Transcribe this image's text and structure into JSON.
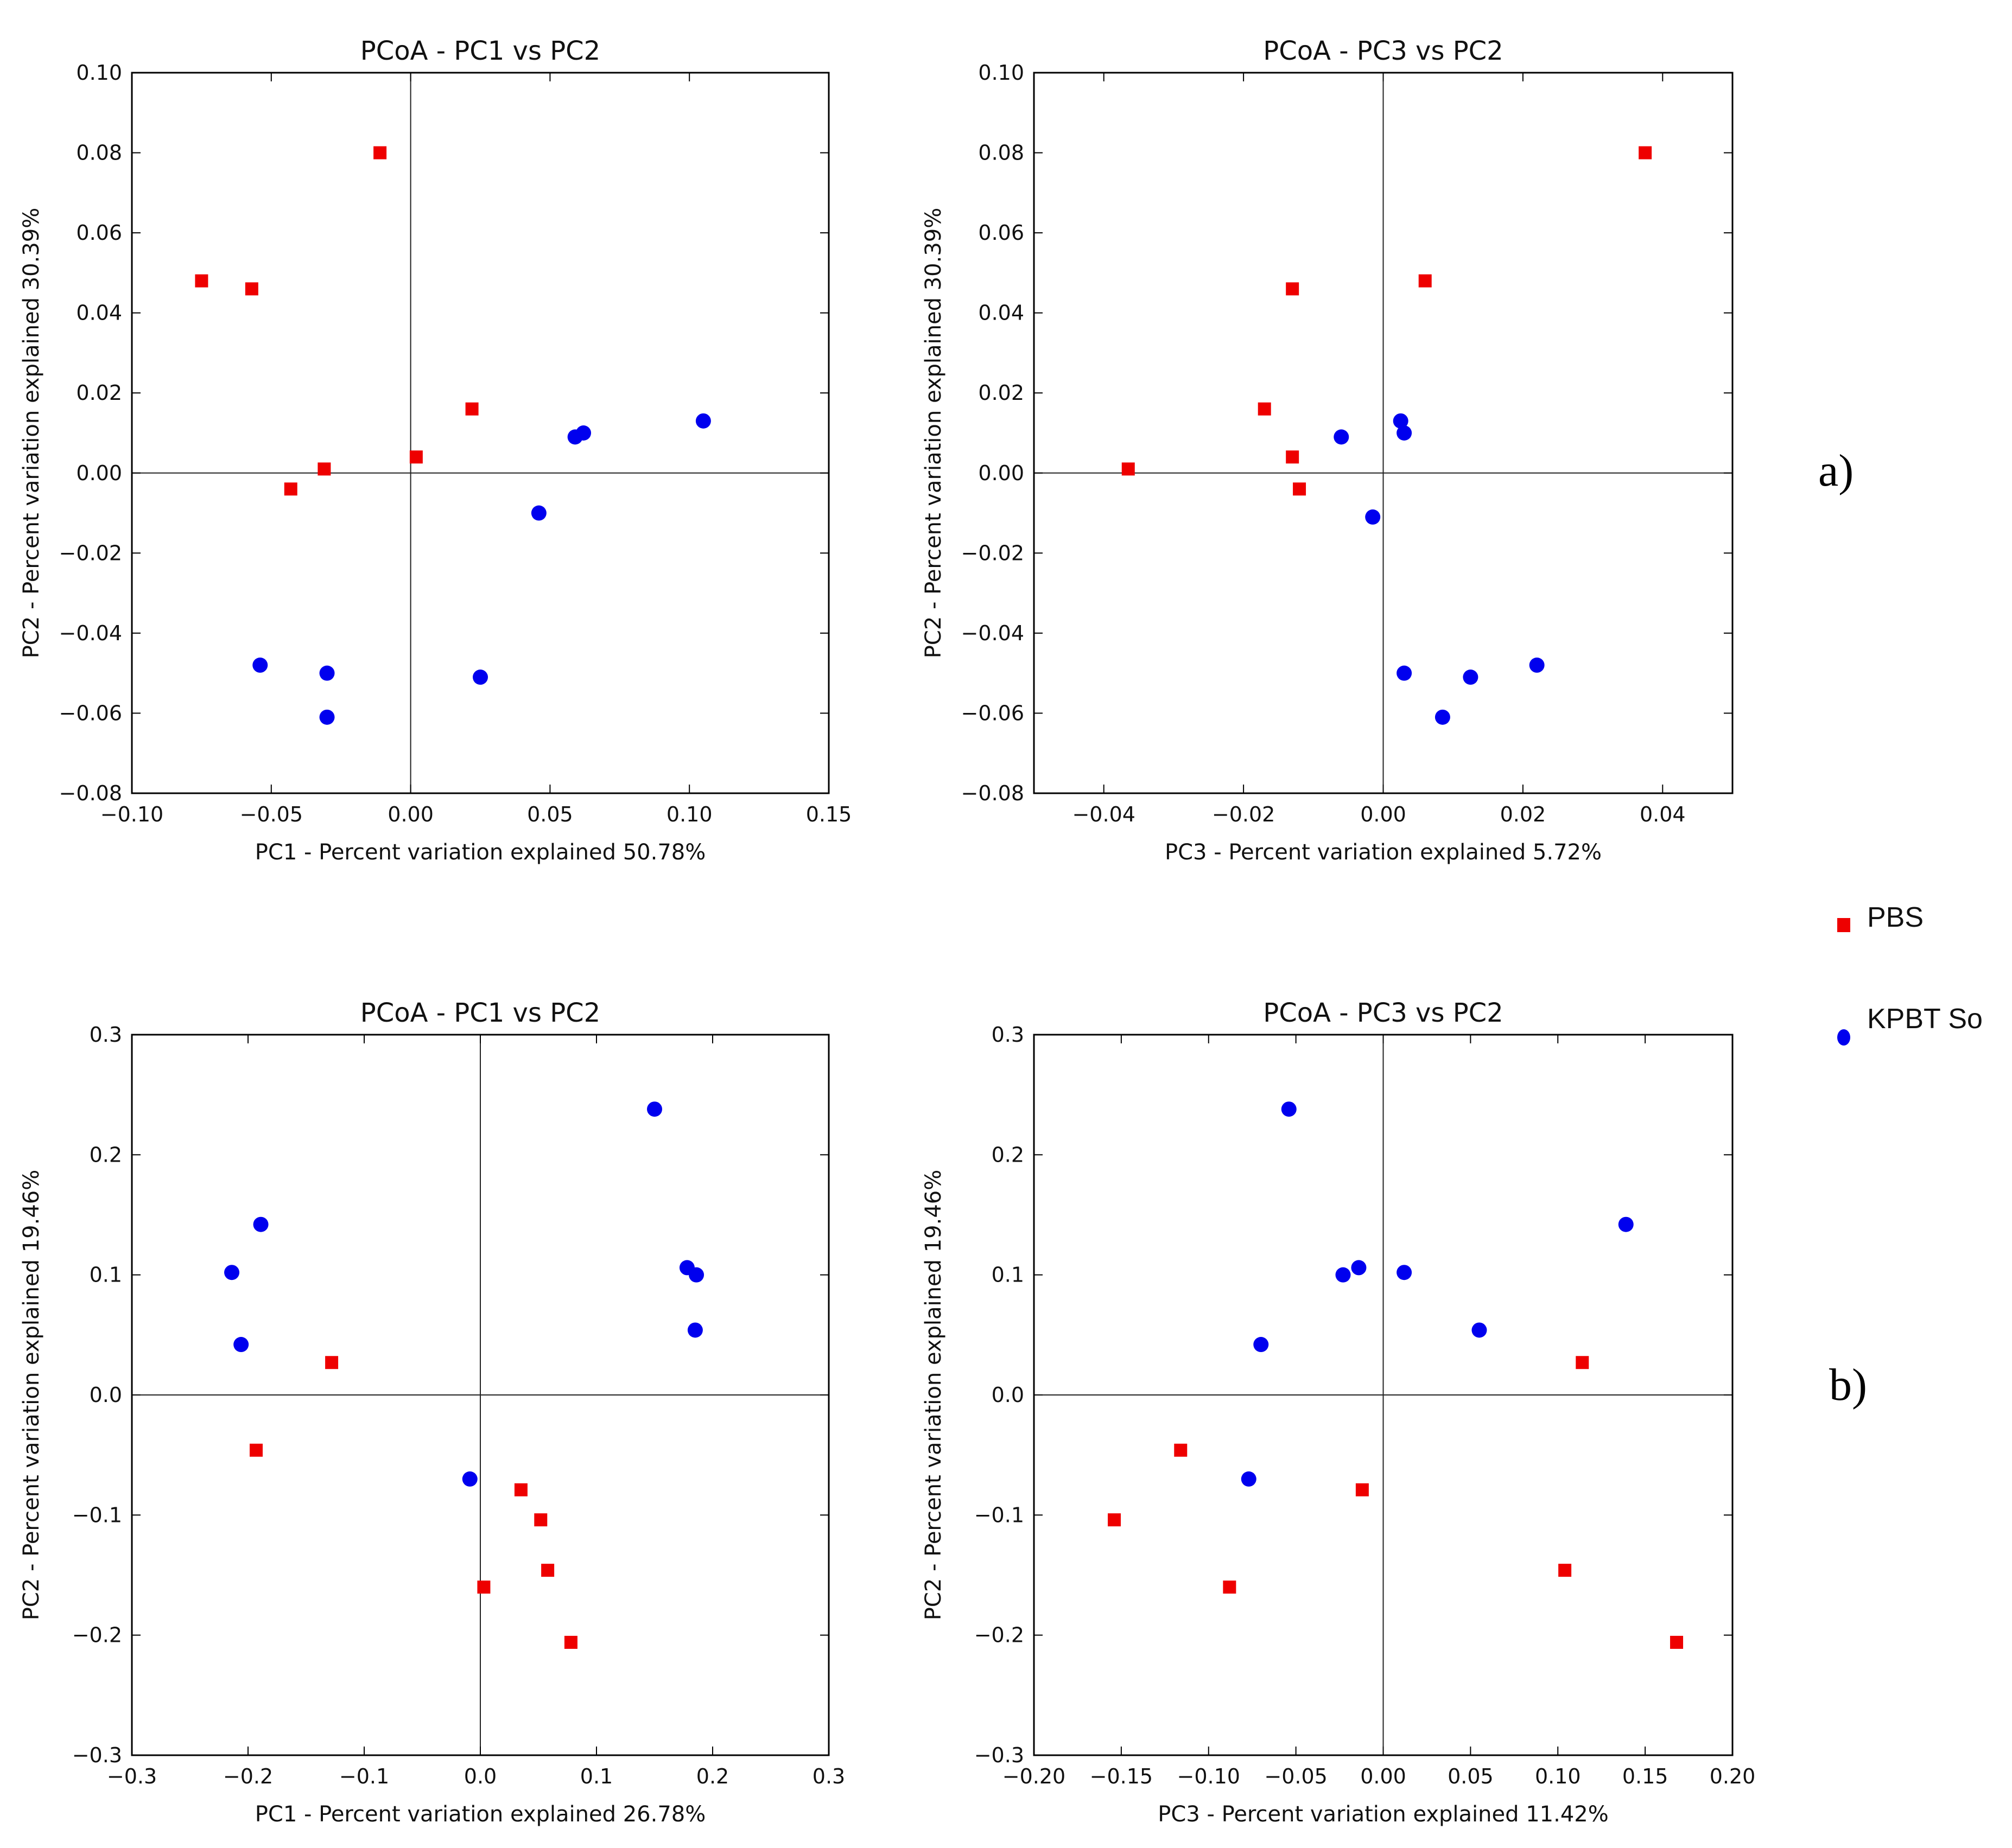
{
  "legend": {
    "items": [
      {
        "name": "PBS",
        "color": "#ee0000",
        "marker": "square"
      },
      {
        "name": "KPBT So",
        "color": "#0000ee",
        "marker": "circle"
      }
    ]
  },
  "panel_labels": {
    "a": "a)",
    "b": "b)"
  },
  "chart_data": [
    {
      "id": "a-pc1-pc2",
      "type": "scatter",
      "title": "PCoA - PC1 vs PC2",
      "xlabel": "PC1 - Percent variation explained 50.78%",
      "ylabel": "PC2 - Percent variation explained 30.39%",
      "xlim": [
        -0.1,
        0.15
      ],
      "ylim": [
        -0.08,
        0.1
      ],
      "xticks": [
        -0.1,
        -0.05,
        0.0,
        0.05,
        0.1,
        0.15
      ],
      "xtick_labels": [
        "−0.10",
        "−0.05",
        "0.00",
        "0.05",
        "0.10",
        "0.15"
      ],
      "yticks": [
        -0.08,
        -0.06,
        -0.04,
        -0.02,
        0.0,
        0.02,
        0.04,
        0.06,
        0.08,
        0.1
      ],
      "ytick_labels": [
        "−0.08",
        "−0.06",
        "−0.04",
        "−0.02",
        "0.00",
        "0.02",
        "0.04",
        "0.06",
        "0.08",
        "0.10"
      ],
      "series": [
        {
          "name": "PBS",
          "points": [
            [
              -0.075,
              0.048
            ],
            [
              -0.057,
              0.046
            ],
            [
              -0.011,
              0.08
            ],
            [
              0.022,
              0.016
            ],
            [
              0.002,
              0.004
            ],
            [
              -0.031,
              0.001
            ],
            [
              -0.043,
              -0.004
            ]
          ]
        },
        {
          "name": "KPBT So",
          "points": [
            [
              0.062,
              0.01
            ],
            [
              0.059,
              0.009
            ],
            [
              0.105,
              0.013
            ],
            [
              0.046,
              -0.01
            ],
            [
              -0.054,
              -0.048
            ],
            [
              -0.03,
              -0.05
            ],
            [
              -0.03,
              -0.061
            ],
            [
              0.025,
              -0.051
            ]
          ]
        }
      ]
    },
    {
      "id": "a-pc3-pc2",
      "type": "scatter",
      "title": "PCoA - PC3 vs PC2",
      "xlabel": "PC3 - Percent variation explained 5.72%",
      "ylabel": "PC2 - Percent variation explained 30.39%",
      "xlim": [
        -0.05,
        0.05
      ],
      "ylim": [
        -0.08,
        0.1
      ],
      "xticks": [
        -0.04,
        -0.02,
        0.0,
        0.02,
        0.04
      ],
      "xtick_labels": [
        "−0.04",
        "−0.02",
        "0.00",
        "0.02",
        "0.04"
      ],
      "yticks": [
        -0.08,
        -0.06,
        -0.04,
        -0.02,
        0.0,
        0.02,
        0.04,
        0.06,
        0.08,
        0.1
      ],
      "ytick_labels": [
        "−0.08",
        "−0.06",
        "−0.04",
        "−0.02",
        "0.00",
        "0.02",
        "0.04",
        "0.06",
        "0.08",
        "0.10"
      ],
      "series": [
        {
          "name": "PBS",
          "points": [
            [
              0.0375,
              0.08
            ],
            [
              0.006,
              0.048
            ],
            [
              -0.013,
              0.046
            ],
            [
              -0.017,
              0.016
            ],
            [
              -0.013,
              0.004
            ],
            [
              -0.012,
              -0.004
            ],
            [
              -0.0365,
              0.001
            ]
          ]
        },
        {
          "name": "KPBT So",
          "points": [
            [
              0.0025,
              0.013
            ],
            [
              0.003,
              0.01
            ],
            [
              -0.006,
              0.009
            ],
            [
              -0.0015,
              -0.011
            ],
            [
              0.003,
              -0.05
            ],
            [
              0.0125,
              -0.051
            ],
            [
              0.022,
              -0.048
            ],
            [
              0.0085,
              -0.061
            ]
          ]
        }
      ]
    },
    {
      "id": "b-pc1-pc2",
      "type": "scatter",
      "title": "PCoA - PC1 vs PC2",
      "xlabel": "PC1 - Percent variation explained 26.78%",
      "ylabel": "PC2 - Percent variation explained 19.46%",
      "xlim": [
        -0.3,
        0.3
      ],
      "ylim": [
        -0.3,
        0.3
      ],
      "xticks": [
        -0.3,
        -0.2,
        -0.1,
        0.0,
        0.1,
        0.2,
        0.3
      ],
      "xtick_labels": [
        "−0.3",
        "−0.2",
        "−0.1",
        "0.0",
        "0.1",
        "0.2",
        "0.3"
      ],
      "yticks": [
        -0.3,
        -0.2,
        -0.1,
        0.0,
        0.1,
        0.2,
        0.3
      ],
      "ytick_labels": [
        "−0.3",
        "−0.2",
        "−0.1",
        "0.0",
        "0.1",
        "0.2",
        "0.3"
      ],
      "series": [
        {
          "name": "PBS",
          "points": [
            [
              -0.128,
              0.027
            ],
            [
              -0.193,
              -0.046
            ],
            [
              0.035,
              -0.079
            ],
            [
              0.052,
              -0.104
            ],
            [
              0.058,
              -0.146
            ],
            [
              0.003,
              -0.16
            ],
            [
              0.078,
              -0.206
            ]
          ]
        },
        {
          "name": "KPBT So",
          "points": [
            [
              -0.189,
              0.142
            ],
            [
              -0.214,
              0.102
            ],
            [
              -0.206,
              0.042
            ],
            [
              0.15,
              0.238
            ],
            [
              0.178,
              0.106
            ],
            [
              0.186,
              0.1
            ],
            [
              0.185,
              0.054
            ],
            [
              -0.009,
              -0.07
            ]
          ]
        }
      ]
    },
    {
      "id": "b-pc3-pc2",
      "type": "scatter",
      "title": "PCoA - PC3 vs PC2",
      "xlabel": "PC3 - Percent variation explained 11.42%",
      "ylabel": "PC2 - Percent variation explained 19.46%",
      "xlim": [
        -0.2,
        0.2
      ],
      "ylim": [
        -0.3,
        0.3
      ],
      "xticks": [
        -0.2,
        -0.15,
        -0.1,
        -0.05,
        0.0,
        0.05,
        0.1,
        0.15,
        0.2
      ],
      "xtick_labels": [
        "−0.20",
        "−0.15",
        "−0.10",
        "−0.05",
        "0.00",
        "0.05",
        "0.10",
        "0.15",
        "0.20"
      ],
      "yticks": [
        -0.3,
        -0.2,
        -0.1,
        0.0,
        0.1,
        0.2,
        0.3
      ],
      "ytick_labels": [
        "−0.3",
        "−0.2",
        "−0.1",
        "0.0",
        "0.1",
        "0.2",
        "0.3"
      ],
      "series": [
        {
          "name": "PBS",
          "points": [
            [
              0.114,
              0.027
            ],
            [
              -0.116,
              -0.046
            ],
            [
              -0.012,
              -0.079
            ],
            [
              -0.154,
              -0.104
            ],
            [
              0.104,
              -0.146
            ],
            [
              -0.088,
              -0.16
            ],
            [
              0.168,
              -0.206
            ]
          ]
        },
        {
          "name": "KPBT So",
          "points": [
            [
              -0.054,
              0.238
            ],
            [
              0.139,
              0.142
            ],
            [
              -0.014,
              0.106
            ],
            [
              -0.023,
              0.1
            ],
            [
              0.012,
              0.102
            ],
            [
              0.055,
              0.054
            ],
            [
              -0.07,
              0.042
            ],
            [
              -0.077,
              -0.07
            ]
          ]
        }
      ]
    }
  ]
}
